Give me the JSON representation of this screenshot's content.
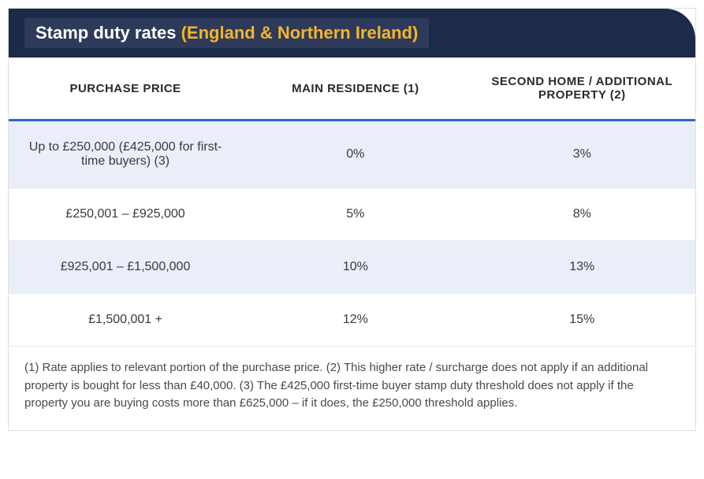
{
  "header": {
    "title_white": "Stamp duty rates ",
    "title_gold": "(England & Northern Ireland)",
    "bg_color": "#1e2a4a",
    "inner_bg_color": "#2e3a5a",
    "white_color": "#ffffff",
    "gold_color": "#f4b528",
    "corner_radius": 38
  },
  "table": {
    "type": "table",
    "header_underline_color": "#2a64d8",
    "header_underline_width": 3,
    "row_stripe_a": "#e9eef8",
    "row_stripe_b": "#ffffff",
    "border_color": "#e6e6e6",
    "text_color": "#3a3a3a",
    "header_text_color": "#2a2a2a",
    "header_fontsize": 15,
    "cell_fontsize": 16,
    "columns": [
      {
        "label": "PURCHASE PRICE",
        "width_pct": 34
      },
      {
        "label": "MAIN RESIDENCE (1)",
        "width_pct": 33
      },
      {
        "label": "SECOND HOME / ADDITIONAL PROPERTY (2)",
        "width_pct": 33
      }
    ],
    "rows": [
      [
        "Up to £250,000 (£425,000 for first-time buyers) (3)",
        "0%",
        "3%"
      ],
      [
        "£250,001 – £925,000",
        "5%",
        "8%"
      ],
      [
        "£925,001 – £1,500,000",
        "10%",
        "13%"
      ],
      [
        "£1,500,001 +",
        "12%",
        "15%"
      ]
    ]
  },
  "footnote": {
    "text": "(1) Rate applies to relevant portion of the purchase price. (2) This higher rate / surcharge does not apply if an additional property is bought for less than £40,000. (3) The £425,000 first-time buyer stamp duty threshold does not apply if the property you are buying costs more than £625,000 – if it does, the £250,000 threshold applies.",
    "fontsize": 15,
    "color": "#4a4a4a"
  }
}
